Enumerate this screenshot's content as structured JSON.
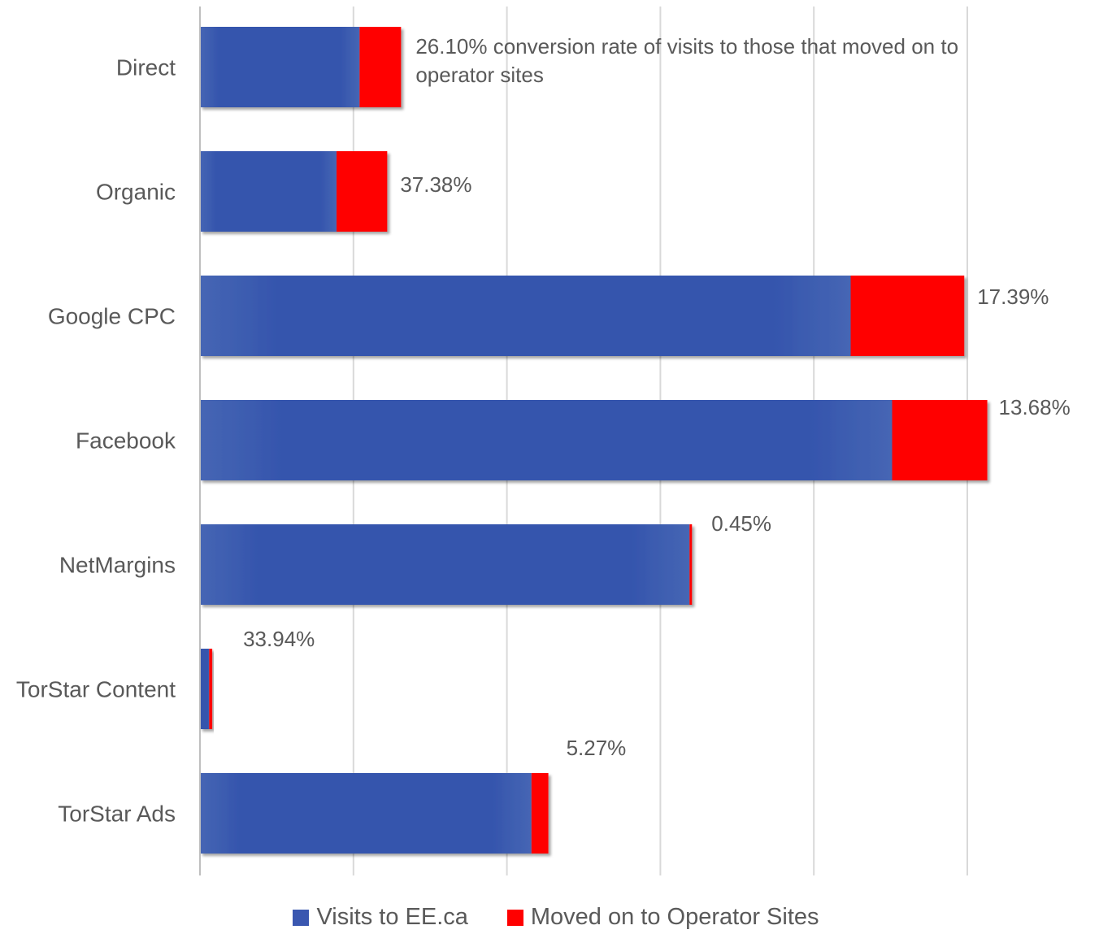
{
  "chart_data": {
    "type": "bar",
    "orientation": "horizontal",
    "stacked": true,
    "categories": [
      "Direct",
      "Organic",
      "Google CPC",
      "Facebook",
      "NetMargins",
      "TorStar Content",
      "TorStar Ads"
    ],
    "series": [
      {
        "name": "Visits to EE.ca",
        "color": "#3A57B0",
        "values": [
          10.4,
          8.9,
          42.4,
          45.1,
          31.9,
          0.6,
          21.6
        ]
      },
      {
        "name": "Moved on to Operator Sites",
        "color": "#FF0000",
        "values": [
          2.7,
          3.3,
          7.4,
          6.2,
          0.15,
          0.2,
          1.1
        ]
      }
    ],
    "data_labels": [
      "26.10% conversion rate of visits to those that moved on to operator sites",
      "37.38%",
      "17.39%",
      "13.68%",
      "0.45%",
      "33.94%",
      "5.27%"
    ],
    "xlim": [
      0,
      50
    ],
    "grid": true,
    "legend_position": "bottom",
    "title": "",
    "xlabel": "",
    "ylabel": ""
  }
}
